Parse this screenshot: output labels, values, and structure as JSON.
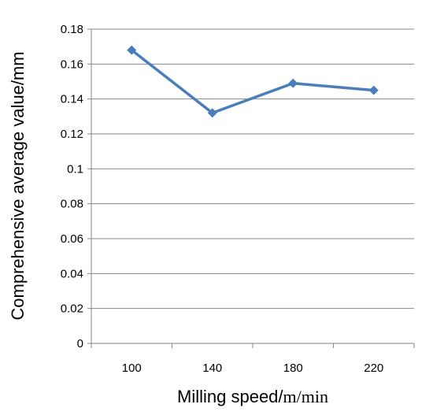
{
  "chart_data": {
    "type": "line",
    "title": "",
    "xlabel": "Milling speed/",
    "xlabel_unit": "m/min",
    "ylabel": "Comprehensive average value/mm",
    "categories": [
      "100",
      "140",
      "180",
      "220"
    ],
    "y_ticks": [
      "0",
      "0.02",
      "0.04",
      "0.06",
      "0.08",
      "0.1",
      "0.12",
      "0.14",
      "0.16",
      "0.18"
    ],
    "ylim": [
      0,
      0.18
    ],
    "grid": true,
    "legend": "none",
    "series": [
      {
        "values": [
          0.168,
          0.132,
          0.149,
          0.145
        ],
        "color": "#4a7ebb",
        "marker": "diamond"
      }
    ]
  }
}
